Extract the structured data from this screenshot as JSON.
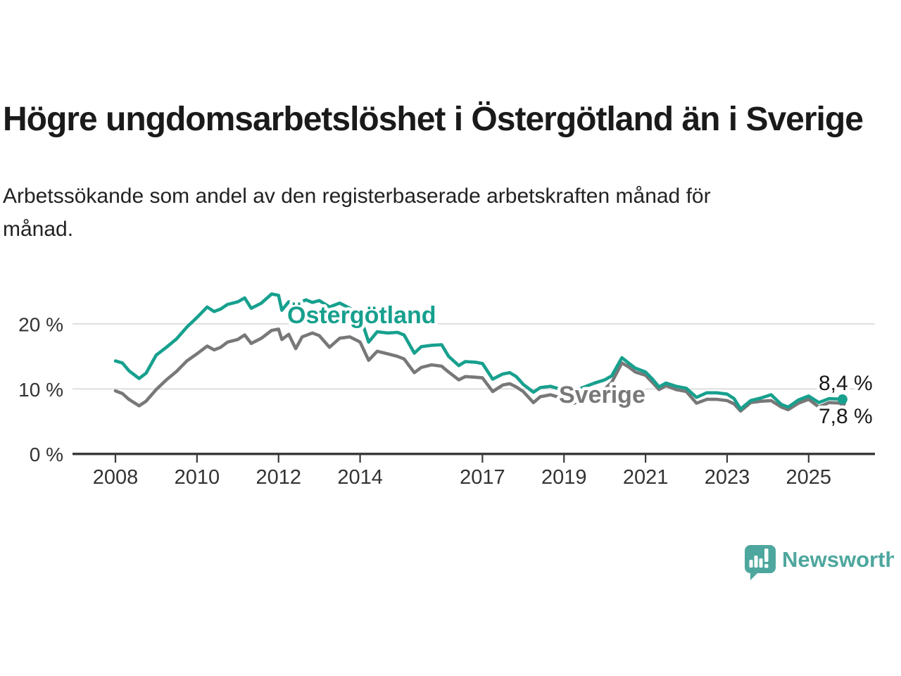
{
  "header": {
    "title": "Högre ungdomsarbetslöshet i Östergötland än i Sverige",
    "subtitle_lines": [
      "Arbetssökande som andel av den registerbaserade arbetskraften månad för",
      "månad."
    ]
  },
  "colors": {
    "title_text": "#1a1a1a",
    "subtitle_text": "#222222",
    "axis": "#3b3b3b",
    "gridline": "#d8d8d8",
    "tick_label": "#333333",
    "ostergotland": "#17a08e",
    "sverige": "#787878",
    "value_label": "#1a1a1a",
    "brand": "#4ea79e"
  },
  "chart_data": {
    "type": "line",
    "title": "Högre ungdomsarbetslöshet i Östergötland än i Sverige",
    "subtitle": "Arbetssökande som andel av den registerbaserade arbetskraften månad för månad.",
    "xlabel": "",
    "ylabel": "",
    "grid": "horizontal",
    "legend_position": "inline-labels",
    "x_axis": {
      "ticks": [
        2008,
        2010,
        2012,
        2014,
        2017,
        2019,
        2021,
        2023,
        2025
      ],
      "tick_labels": [
        "2008",
        "2010",
        "2012",
        "2014",
        "2017",
        "2019",
        "2021",
        "2023",
        "2025"
      ],
      "range": [
        2006.95,
        2026.6
      ]
    },
    "y_axis": {
      "ticks": [
        0,
        10,
        20
      ],
      "tick_labels": [
        "0 %",
        "10 %",
        "20 %"
      ],
      "unit": "%",
      "range": [
        0,
        26.5
      ]
    },
    "series": [
      {
        "name": "Sverige",
        "color": "#787878",
        "end_value": 7.8,
        "end_label": "7,8 %",
        "points": [
          [
            2008.0,
            9.7
          ],
          [
            2008.17,
            9.3
          ],
          [
            2008.33,
            8.4
          ],
          [
            2008.58,
            7.4
          ],
          [
            2008.75,
            8.1
          ],
          [
            2009.0,
            9.9
          ],
          [
            2009.25,
            11.4
          ],
          [
            2009.5,
            12.7
          ],
          [
            2009.75,
            14.3
          ],
          [
            2010.0,
            15.4
          ],
          [
            2010.25,
            16.6
          ],
          [
            2010.42,
            16.0
          ],
          [
            2010.58,
            16.4
          ],
          [
            2010.75,
            17.2
          ],
          [
            2011.0,
            17.6
          ],
          [
            2011.17,
            18.3
          ],
          [
            2011.33,
            17.0
          ],
          [
            2011.58,
            17.8
          ],
          [
            2011.83,
            19.0
          ],
          [
            2012.0,
            19.2
          ],
          [
            2012.08,
            17.6
          ],
          [
            2012.25,
            18.4
          ],
          [
            2012.42,
            16.2
          ],
          [
            2012.58,
            18.0
          ],
          [
            2012.83,
            18.6
          ],
          [
            2013.0,
            18.2
          ],
          [
            2013.25,
            16.4
          ],
          [
            2013.5,
            17.8
          ],
          [
            2013.75,
            18.0
          ],
          [
            2014.0,
            17.2
          ],
          [
            2014.21,
            14.4
          ],
          [
            2014.42,
            15.8
          ],
          [
            2014.67,
            15.4
          ],
          [
            2014.92,
            15.0
          ],
          [
            2015.08,
            14.6
          ],
          [
            2015.33,
            12.5
          ],
          [
            2015.5,
            13.3
          ],
          [
            2015.75,
            13.7
          ],
          [
            2016.0,
            13.5
          ],
          [
            2016.17,
            12.6
          ],
          [
            2016.42,
            11.4
          ],
          [
            2016.58,
            11.9
          ],
          [
            2016.83,
            11.8
          ],
          [
            2017.0,
            11.7
          ],
          [
            2017.25,
            9.6
          ],
          [
            2017.5,
            10.6
          ],
          [
            2017.67,
            10.8
          ],
          [
            2017.83,
            10.3
          ],
          [
            2018.0,
            9.6
          ],
          [
            2018.25,
            7.9
          ],
          [
            2018.42,
            8.8
          ],
          [
            2018.67,
            9.1
          ],
          [
            2018.83,
            8.8
          ],
          [
            2019.0,
            8.7
          ],
          [
            2019.25,
            7.8
          ],
          [
            2019.5,
            8.5
          ],
          [
            2019.75,
            9.2
          ],
          [
            2020.0,
            10.0
          ],
          [
            2020.17,
            11.0
          ],
          [
            2020.42,
            14.0
          ],
          [
            2020.58,
            13.4
          ],
          [
            2020.75,
            12.6
          ],
          [
            2021.0,
            12.1
          ],
          [
            2021.17,
            11.0
          ],
          [
            2021.33,
            9.9
          ],
          [
            2021.5,
            10.5
          ],
          [
            2021.75,
            9.9
          ],
          [
            2022.0,
            9.6
          ],
          [
            2022.25,
            7.8
          ],
          [
            2022.5,
            8.4
          ],
          [
            2022.75,
            8.4
          ],
          [
            2023.0,
            8.2
          ],
          [
            2023.17,
            7.7
          ],
          [
            2023.33,
            6.6
          ],
          [
            2023.58,
            7.9
          ],
          [
            2023.83,
            8.1
          ],
          [
            2024.08,
            8.2
          ],
          [
            2024.33,
            7.2
          ],
          [
            2024.5,
            6.8
          ],
          [
            2024.75,
            7.8
          ],
          [
            2025.0,
            8.4
          ],
          [
            2025.25,
            7.2
          ],
          [
            2025.5,
            7.9
          ],
          [
            2025.83,
            7.8
          ]
        ]
      },
      {
        "name": "Östergötland",
        "color": "#17a08e",
        "end_value": 8.4,
        "end_label": "8,4 %",
        "points": [
          [
            2008.0,
            14.3
          ],
          [
            2008.17,
            14.0
          ],
          [
            2008.33,
            12.8
          ],
          [
            2008.58,
            11.6
          ],
          [
            2008.75,
            12.4
          ],
          [
            2009.0,
            15.2
          ],
          [
            2009.25,
            16.4
          ],
          [
            2009.5,
            17.7
          ],
          [
            2009.75,
            19.5
          ],
          [
            2010.0,
            21.0
          ],
          [
            2010.25,
            22.6
          ],
          [
            2010.42,
            21.9
          ],
          [
            2010.58,
            22.3
          ],
          [
            2010.75,
            23.0
          ],
          [
            2011.0,
            23.4
          ],
          [
            2011.17,
            24.0
          ],
          [
            2011.33,
            22.4
          ],
          [
            2011.58,
            23.2
          ],
          [
            2011.83,
            24.6
          ],
          [
            2012.0,
            24.4
          ],
          [
            2012.08,
            22.1
          ],
          [
            2012.25,
            23.4
          ],
          [
            2012.5,
            23.2
          ],
          [
            2012.67,
            23.7
          ],
          [
            2012.83,
            23.3
          ],
          [
            2013.0,
            23.6
          ],
          [
            2013.25,
            22.6
          ],
          [
            2013.5,
            23.2
          ],
          [
            2013.75,
            22.4
          ],
          [
            2014.0,
            21.2
          ],
          [
            2014.21,
            17.2
          ],
          [
            2014.42,
            18.8
          ],
          [
            2014.67,
            18.6
          ],
          [
            2014.92,
            18.7
          ],
          [
            2015.08,
            18.3
          ],
          [
            2015.33,
            15.5
          ],
          [
            2015.5,
            16.5
          ],
          [
            2015.75,
            16.7
          ],
          [
            2016.0,
            16.8
          ],
          [
            2016.17,
            15.0
          ],
          [
            2016.42,
            13.6
          ],
          [
            2016.58,
            14.2
          ],
          [
            2016.83,
            14.1
          ],
          [
            2017.0,
            13.9
          ],
          [
            2017.25,
            11.5
          ],
          [
            2017.5,
            12.3
          ],
          [
            2017.67,
            12.5
          ],
          [
            2017.83,
            11.9
          ],
          [
            2018.0,
            10.7
          ],
          [
            2018.25,
            9.5
          ],
          [
            2018.42,
            10.2
          ],
          [
            2018.67,
            10.4
          ],
          [
            2018.83,
            10.1
          ],
          [
            2019.0,
            10.2
          ],
          [
            2019.25,
            9.7
          ],
          [
            2019.5,
            10.3
          ],
          [
            2019.75,
            10.9
          ],
          [
            2020.0,
            11.4
          ],
          [
            2020.17,
            12.0
          ],
          [
            2020.42,
            14.8
          ],
          [
            2020.58,
            14.0
          ],
          [
            2020.75,
            13.2
          ],
          [
            2021.0,
            12.6
          ],
          [
            2021.17,
            11.5
          ],
          [
            2021.33,
            10.3
          ],
          [
            2021.5,
            10.9
          ],
          [
            2021.75,
            10.4
          ],
          [
            2022.0,
            10.1
          ],
          [
            2022.25,
            8.7
          ],
          [
            2022.5,
            9.4
          ],
          [
            2022.75,
            9.4
          ],
          [
            2023.0,
            9.2
          ],
          [
            2023.17,
            8.5
          ],
          [
            2023.33,
            6.9
          ],
          [
            2023.58,
            8.2
          ],
          [
            2023.83,
            8.6
          ],
          [
            2024.08,
            9.1
          ],
          [
            2024.33,
            7.6
          ],
          [
            2024.5,
            7.2
          ],
          [
            2024.75,
            8.3
          ],
          [
            2025.0,
            8.9
          ],
          [
            2025.25,
            7.9
          ],
          [
            2025.5,
            8.5
          ],
          [
            2025.83,
            8.4
          ]
        ]
      }
    ],
    "annotations": [
      {
        "text": "Östergötland",
        "x": 2012.25,
        "y": 21.2,
        "color": "#17a08e"
      },
      {
        "text": "Sverige",
        "x": 2018.9,
        "y": 8.3,
        "color": "#7c7c7c"
      },
      {
        "text": "8,4 %",
        "x": 2025.3,
        "y": 10.2,
        "color": "#1a1a1a"
      },
      {
        "text": "7,8 %",
        "x": 2025.3,
        "y": 5.0,
        "color": "#1a1a1a"
      }
    ]
  },
  "footer": {
    "brand": "Newsworthy"
  }
}
